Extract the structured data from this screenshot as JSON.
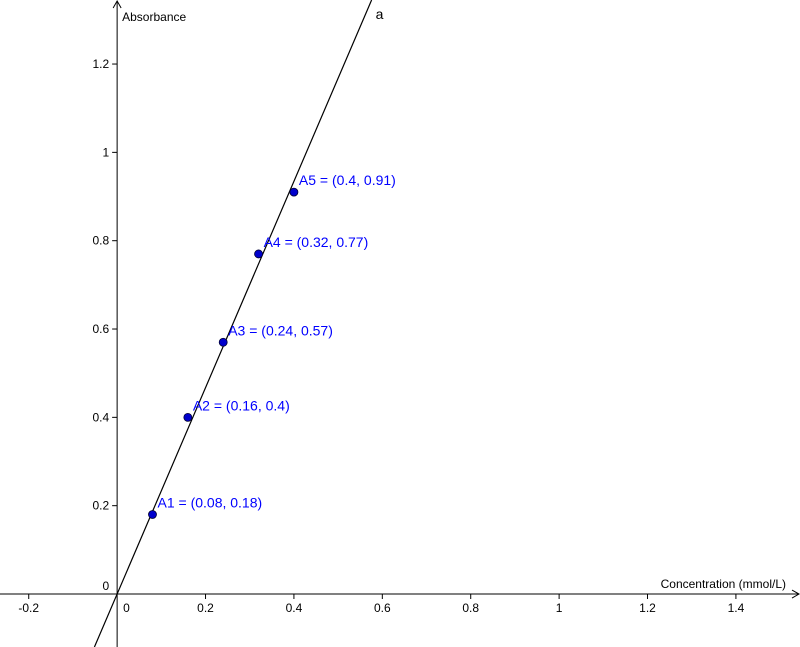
{
  "chart_data": {
    "type": "scatter",
    "xlabel": "Concentration (mmol/L)",
    "ylabel": "Absorbance",
    "xlim": [
      -0.265,
      1.545
    ],
    "ylim": [
      -0.12,
      1.345
    ],
    "x_ticks": [
      -0.2,
      0.2,
      0.4,
      0.6,
      0.8,
      1,
      1.2,
      1.4
    ],
    "x_tick_labels": [
      "-0.2",
      "0.2",
      "0.4",
      "0.6",
      "0.8",
      "1",
      "1.2",
      "1.4"
    ],
    "y_ticks": [
      0.2,
      0.4,
      0.6,
      0.8,
      1,
      1.2
    ],
    "y_tick_labels": [
      "0.2",
      "0.4",
      "0.6",
      "0.8",
      "1",
      "1.2"
    ],
    "origin_x_label": "0",
    "origin_y_label": "0",
    "grid": false,
    "points": [
      {
        "name": "A1",
        "x": 0.08,
        "y": 0.18,
        "label": "A1 = (0.08, 0.18)"
      },
      {
        "name": "A2",
        "x": 0.16,
        "y": 0.4,
        "label": "A2 = (0.16, 0.4)"
      },
      {
        "name": "A3",
        "x": 0.24,
        "y": 0.57,
        "label": "A3 = (0.24, 0.57)"
      },
      {
        "name": "A4",
        "x": 0.32,
        "y": 0.77,
        "label": "A4 = (0.32, 0.77)"
      },
      {
        "name": "A5",
        "x": 0.4,
        "y": 0.91,
        "label": "A5 = (0.4, 0.91)"
      }
    ],
    "fit_line": {
      "name": "a",
      "slope": 2.336,
      "intercept": 0
    },
    "point_color": "#0000cc",
    "label_color": "#0000ff",
    "axis_color": "#000000"
  }
}
